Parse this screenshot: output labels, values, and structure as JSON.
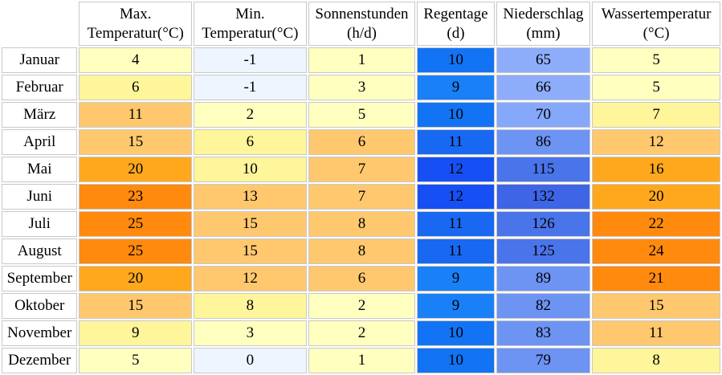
{
  "headers": [
    {
      "line1": "Max.",
      "line2": "Temperatur(°C)"
    },
    {
      "line1": "Min.",
      "line2": "Temperatur(°C)"
    },
    {
      "line1": "Sonnenstunden",
      "line2": "(h/d)"
    },
    {
      "line1": "Regentage",
      "line2": "(d)"
    },
    {
      "line1": "Niederschlag",
      "line2": "(mm)"
    },
    {
      "line1": "Wassertemperatur",
      "line2": "(°C)"
    }
  ],
  "rows": [
    {
      "month": "Januar",
      "values": [
        "4",
        "-1",
        "1",
        "10",
        "65",
        "5"
      ],
      "colors": [
        "#ffffc0",
        "#eef5ff",
        "#ffffc0",
        "#1273f5",
        "#8dadfb",
        "#ffffc0"
      ]
    },
    {
      "month": "Februar",
      "values": [
        "6",
        "-1",
        "3",
        "9",
        "66",
        "5"
      ],
      "colors": [
        "#fff59a",
        "#eef5ff",
        "#ffffc0",
        "#1a80f7",
        "#8dadfb",
        "#ffffc0"
      ]
    },
    {
      "month": "März",
      "values": [
        "11",
        "2",
        "5",
        "10",
        "70",
        "7"
      ],
      "colors": [
        "#ffc86e",
        "#ffffc0",
        "#ffffc0",
        "#1273f5",
        "#86a8fa",
        "#fff59a"
      ]
    },
    {
      "month": "April",
      "values": [
        "15",
        "6",
        "6",
        "11",
        "86",
        "12"
      ],
      "colors": [
        "#ffc86e",
        "#fff59a",
        "#ffc86e",
        "#1868f2",
        "#6d93f3",
        "#ffc86e"
      ]
    },
    {
      "month": "Mai",
      "values": [
        "20",
        "10",
        "7",
        "12",
        "115",
        "16"
      ],
      "colors": [
        "#ffa81e",
        "#fff59a",
        "#ffc86e",
        "#1650f5",
        "#4a74ea",
        "#ffa81e"
      ]
    },
    {
      "month": "Juni",
      "values": [
        "23",
        "13",
        "7",
        "12",
        "132",
        "20"
      ],
      "colors": [
        "#ff8a0e",
        "#ffc86e",
        "#ffc86e",
        "#1650f5",
        "#3d65e6",
        "#ffa81e"
      ]
    },
    {
      "month": "Juli",
      "values": [
        "25",
        "15",
        "8",
        "11",
        "126",
        "22"
      ],
      "colors": [
        "#ff8a0e",
        "#ffc86e",
        "#ffc86e",
        "#1868f2",
        "#4a74ea",
        "#ff8a0e"
      ]
    },
    {
      "month": "August",
      "values": [
        "25",
        "15",
        "8",
        "11",
        "125",
        "24"
      ],
      "colors": [
        "#ff8a0e",
        "#ffc86e",
        "#ffc86e",
        "#1868f2",
        "#4a74ea",
        "#ff8a0e"
      ]
    },
    {
      "month": "September",
      "values": [
        "20",
        "12",
        "6",
        "9",
        "89",
        "21"
      ],
      "colors": [
        "#ffa81e",
        "#ffc86e",
        "#ffc86e",
        "#1a80f7",
        "#6d93f3",
        "#ff8a0e"
      ]
    },
    {
      "month": "Oktober",
      "values": [
        "15",
        "8",
        "2",
        "9",
        "82",
        "15"
      ],
      "colors": [
        "#ffc86e",
        "#fff59a",
        "#ffffc0",
        "#1a80f7",
        "#6d93f3",
        "#ffc86e"
      ]
    },
    {
      "month": "November",
      "values": [
        "9",
        "3",
        "2",
        "10",
        "83",
        "11"
      ],
      "colors": [
        "#fff59a",
        "#ffffc0",
        "#ffffc0",
        "#1273f5",
        "#6d93f3",
        "#ffc86e"
      ]
    },
    {
      "month": "Dezember",
      "values": [
        "5",
        "0",
        "1",
        "10",
        "79",
        "8"
      ],
      "colors": [
        "#ffffc0",
        "#eef5ff",
        "#ffffc0",
        "#1273f5",
        "#6d93f3",
        "#fff59a"
      ]
    }
  ]
}
